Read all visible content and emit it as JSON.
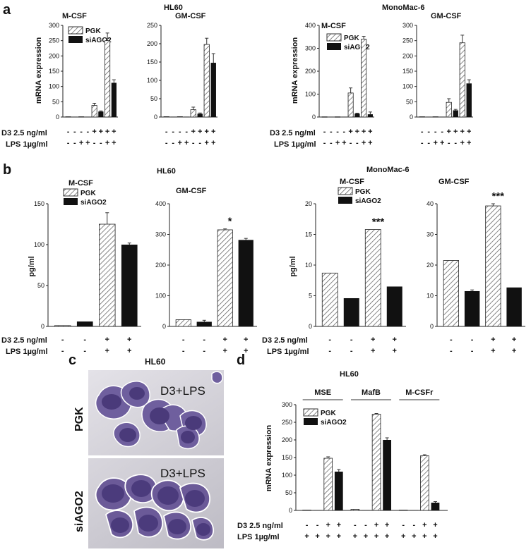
{
  "panels": {
    "a": {
      "label": "a",
      "left_title": "HL60",
      "right_title": "MonoMac-6"
    },
    "b": {
      "label": "b",
      "left_title": "HL60",
      "right_title": "MonoMac-6"
    },
    "c": {
      "label": "c",
      "title": "HL60",
      "image_labels": [
        "PGK",
        "siAGO2"
      ],
      "overlay": "D3+LPS"
    },
    "d": {
      "label": "d",
      "title": "HL60"
    }
  },
  "legend": {
    "pgk": "PGK",
    "siago2": "siAGO2"
  },
  "conditions": {
    "d3": "D3 2.5 ng/ml",
    "lps": "LPS 1µg/ml",
    "plus": "+",
    "minus": "-"
  },
  "chart_data": [
    {
      "id": "a1",
      "type": "bar",
      "group": "HL60",
      "title": "M-CSF",
      "ylabel": "mRNA expression",
      "ylim": [
        0,
        300
      ],
      "ticks": [
        0,
        50,
        100,
        150,
        200,
        250,
        300
      ],
      "series": [
        {
          "name": "PGK",
          "values": [
            1,
            1,
            1,
            38,
            250
          ]
        },
        {
          "name": "siAGO2",
          "values": [
            1,
            1,
            1,
            18,
            112
          ]
        }
      ],
      "d3": [
        "-",
        "-",
        "-",
        "-",
        "+",
        "+",
        "+",
        "+"
      ],
      "lps": [
        "-",
        "-",
        "+",
        "+",
        "-",
        "-",
        "+",
        "+"
      ],
      "errors": {
        "PGK": [
          0,
          0,
          0,
          7,
          25
        ],
        "siAGO2": [
          0,
          0,
          0,
          2,
          10
        ]
      }
    },
    {
      "id": "a2",
      "type": "bar",
      "group": "HL60",
      "title": "GM-CSF",
      "ylabel": "",
      "ylim": [
        0,
        250
      ],
      "ticks": [
        0,
        50,
        100,
        150,
        200,
        250
      ],
      "series": [
        {
          "name": "PGK",
          "values": [
            1,
            1,
            1,
            20,
            198
          ]
        },
        {
          "name": "siAGO2",
          "values": [
            1,
            1,
            1,
            9,
            148
          ]
        }
      ],
      "d3": [
        "-",
        "-",
        "-",
        "-",
        "+",
        "+",
        "+",
        "+"
      ],
      "lps": [
        "-",
        "-",
        "+",
        "+",
        "-",
        "-",
        "+",
        "+"
      ],
      "errors": {
        "PGK": [
          0,
          0,
          0,
          7,
          17
        ],
        "siAGO2": [
          0,
          0,
          0,
          2,
          25
        ]
      }
    },
    {
      "id": "a3",
      "type": "bar",
      "group": "MonoMac-6",
      "title": "M-CSF",
      "ylabel": "mRNA expression",
      "ylim": [
        0,
        400
      ],
      "ticks": [
        0,
        100,
        200,
        300,
        400
      ],
      "series": [
        {
          "name": "PGK",
          "values": [
            1,
            1,
            1,
            105,
            340
          ]
        },
        {
          "name": "siAGO2",
          "values": [
            1,
            1,
            1,
            15,
            12
          ]
        }
      ],
      "d3": [
        "-",
        "-",
        "-",
        "-",
        "+",
        "+",
        "+",
        "+"
      ],
      "lps": [
        "-",
        "-",
        "+",
        "+",
        "-",
        "-",
        "+",
        "+"
      ],
      "errors": {
        "PGK": [
          0,
          0,
          0,
          22,
          12
        ],
        "siAGO2": [
          0,
          0,
          0,
          2,
          10
        ]
      }
    },
    {
      "id": "a4",
      "type": "bar",
      "group": "MonoMac-6",
      "title": "GM-CSF",
      "ylabel": "",
      "ylim": [
        0,
        300
      ],
      "ticks": [
        0,
        50,
        100,
        150,
        200,
        250,
        300
      ],
      "series": [
        {
          "name": "PGK",
          "values": [
            1,
            1,
            1,
            48,
            243
          ]
        },
        {
          "name": "siAGO2",
          "values": [
            1,
            1,
            1,
            22,
            110
          ]
        }
      ],
      "d3": [
        "-",
        "-",
        "-",
        "-",
        "+",
        "+",
        "+",
        "+"
      ],
      "lps": [
        "-",
        "-",
        "+",
        "+",
        "-",
        "-",
        "+",
        "+"
      ],
      "errors": {
        "PGK": [
          0,
          0,
          0,
          12,
          25
        ],
        "siAGO2": [
          0,
          0,
          0,
          3,
          12
        ]
      }
    },
    {
      "id": "b1",
      "type": "bar",
      "group": "HL60",
      "title": "M-CSF",
      "ylabel": "pg/ml",
      "ylim": [
        0,
        150
      ],
      "ticks": [
        0,
        50,
        100,
        150
      ],
      "series": [
        {
          "name": "PGK",
          "values": [
            1,
            125
          ]
        },
        {
          "name": "siAGO2",
          "values": [
            6,
            100
          ]
        }
      ],
      "d3": [
        "-",
        "-",
        "+",
        "+"
      ],
      "lps": [
        "-",
        "-",
        "+",
        "+"
      ],
      "errors": {
        "PGK": [
          0,
          14
        ],
        "siAGO2": [
          0,
          2
        ]
      }
    },
    {
      "id": "b2",
      "type": "bar",
      "group": "HL60",
      "title": "GM-CSF",
      "ylabel": "",
      "ylim": [
        0,
        400
      ],
      "ticks": [
        0,
        100,
        200,
        300,
        400
      ],
      "series": [
        {
          "name": "PGK",
          "values": [
            22,
            315
          ]
        },
        {
          "name": "siAGO2",
          "values": [
            15,
            282
          ]
        }
      ],
      "d3": [
        "-",
        "-",
        "+",
        "+"
      ],
      "lps": [
        "-",
        "-",
        "+",
        "+"
      ],
      "errors": {
        "PGK": [
          0,
          3
        ],
        "siAGO2": [
          5,
          5
        ]
      },
      "annotation": "*"
    },
    {
      "id": "b3",
      "type": "bar",
      "group": "MonoMac-6",
      "title": "M-CSF",
      "ylabel": "pg/ml",
      "ylim": [
        0,
        20
      ],
      "ticks": [
        0,
        5,
        10,
        15,
        20
      ],
      "series": [
        {
          "name": "PGK",
          "values": [
            8.7,
            15.8
          ]
        },
        {
          "name": "siAGO2",
          "values": [
            4.6,
            6.5
          ]
        }
      ],
      "d3": [
        "-",
        "-",
        "+",
        "+"
      ],
      "lps": [
        "-",
        "-",
        "+",
        "+"
      ],
      "errors": {
        "PGK": [
          0,
          0
        ],
        "siAGO2": [
          0,
          0
        ]
      },
      "annotation": "***"
    },
    {
      "id": "b4",
      "type": "bar",
      "group": "MonoMac-6",
      "title": "GM-CSF",
      "ylabel": "",
      "ylim": [
        0,
        40
      ],
      "ticks": [
        0,
        10,
        20,
        30,
        40
      ],
      "series": [
        {
          "name": "PGK",
          "values": [
            21.5,
            39.3
          ]
        },
        {
          "name": "siAGO2",
          "values": [
            11.5,
            12.7
          ]
        }
      ],
      "d3": [
        "-",
        "-",
        "+",
        "+"
      ],
      "lps": [
        "-",
        "-",
        "+",
        "+"
      ],
      "errors": {
        "PGK": [
          0,
          1.5
        ],
        "siAGO2": [
          0.4,
          0
        ]
      },
      "annotation": "***"
    },
    {
      "id": "d1",
      "type": "bar",
      "group": "HL60",
      "title": "",
      "ylabel": "mRNA expression",
      "ylim": [
        0,
        300
      ],
      "ticks": [
        0,
        50,
        100,
        150,
        200,
        250,
        300
      ],
      "groups": [
        {
          "name": "MSE",
          "PGK": [
            1,
            148
          ],
          "siAGO2": [
            1,
            110
          ],
          "err_PGK": [
            0,
            4
          ],
          "err_siAGO2": [
            0,
            6
          ]
        },
        {
          "name": "MafB",
          "PGK": [
            3,
            273
          ],
          "siAGO2": [
            1,
            200
          ],
          "err_PGK": [
            0,
            2
          ],
          "err_siAGO2": [
            0,
            6
          ]
        },
        {
          "name": "M-CSFr",
          "PGK": [
            1,
            155
          ],
          "siAGO2": [
            1,
            22
          ],
          "err_PGK": [
            0,
            3
          ],
          "err_siAGO2": [
            0,
            3
          ]
        }
      ],
      "d3": [
        "-",
        "-",
        "+",
        "+",
        "-",
        "-",
        "+",
        "+",
        "-",
        "-",
        "+",
        "+"
      ],
      "lps": [
        "+",
        "+",
        "+",
        "+",
        "+",
        "+",
        "+",
        "+",
        "+",
        "+",
        "+",
        "+"
      ]
    }
  ]
}
